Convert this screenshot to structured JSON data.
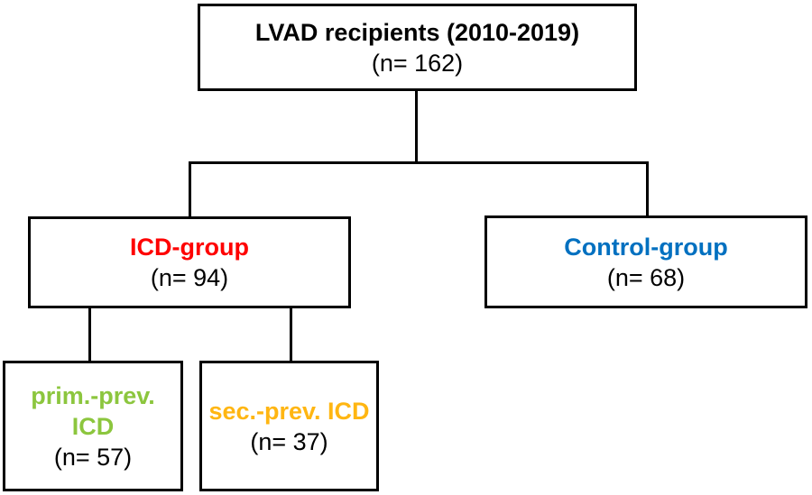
{
  "line_color": "#000000",
  "nodes": {
    "root": {
      "title": "LVAD recipients (2010-2019)",
      "count": "(n= 162)",
      "title_color": "#000000"
    },
    "icd": {
      "title": "ICD-group",
      "count": "(n= 94)",
      "title_color": "#FE0000"
    },
    "control": {
      "title": "Control-group",
      "count": "(n= 68)",
      "title_color": "#0070C0"
    },
    "prim_prev": {
      "title": "prim.-prev. ICD",
      "count": "(n= 57)",
      "title_color": "#8CC63E"
    },
    "sec_prev": {
      "title": "sec.-prev. ICD",
      "count": "(n= 37)",
      "title_color": "#FFB612"
    }
  }
}
